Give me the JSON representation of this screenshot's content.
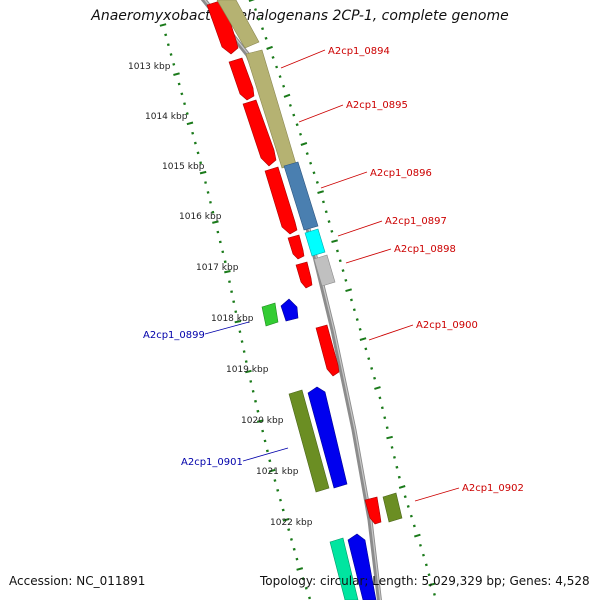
{
  "title": "Anaeromyxobacter dehalogenans 2CP-1, complete genome",
  "accession": "Accession: NC_011891",
  "topology": "Topology: circular; Length: 5,029,329 bp; Genes: 4,528",
  "ticks": [
    "1013 kbp",
    "1014 kbp",
    "1015 kbp",
    "1016 kbp",
    "1017 kbp",
    "1018 kbp",
    "1019 kbp",
    "1020 kbp",
    "1021 kbp",
    "1022 kbp"
  ],
  "labels": {
    "g0894": "A2cp1_0894",
    "g0895": "A2cp1_0895",
    "g0896": "A2cp1_0896",
    "g0897": "A2cp1_0897",
    "g0898": "A2cp1_0898",
    "g0899": "A2cp1_0899",
    "g0900": "A2cp1_0900",
    "g0901": "A2cp1_0901",
    "g0902": "A2cp1_0902"
  },
  "colors": {
    "forward_label": "#cc0000",
    "reverse_label": "#0000aa",
    "backbone": "#8c8c8c",
    "tick": "#1a7a1a",
    "cds": "#ff0000",
    "olive_feature": "#b5b272",
    "steel_feature": "#4a7fb0",
    "cyan_feature": "#00ffff",
    "grey_feature": "#c0c0c0",
    "green_feature": "#33cc33",
    "blue_feature": "#0000ee",
    "darkolive_feature": "#6b8e23",
    "mint_feature": "#00e5a0"
  }
}
